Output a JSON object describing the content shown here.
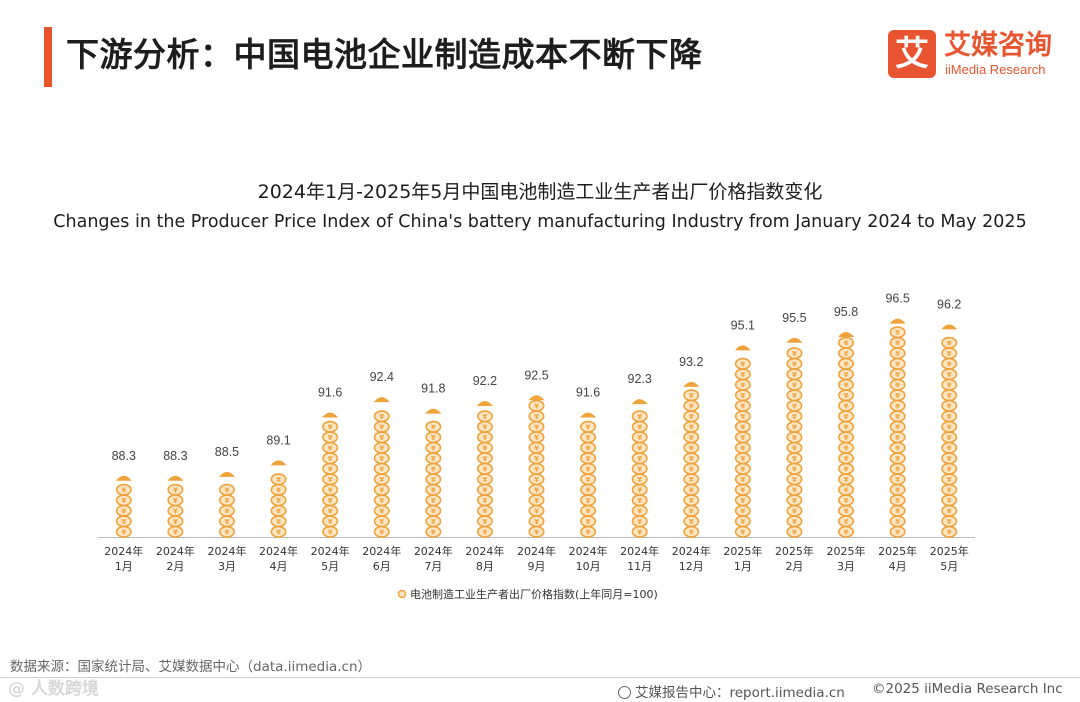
{
  "header": {
    "title": "下游分析：中国电池企业制造成本不断下降",
    "accent_color": "#e8542f"
  },
  "logo": {
    "mark": "艾",
    "cn": "艾媒咨询",
    "en": "iiMedia Research"
  },
  "chart_data": {
    "type": "bar",
    "title": "2024年1月-2025年5月中国电池制造工业生产者出厂价格指数变化",
    "subtitle": "Changes in the Producer Price Index of China's battery manufacturing Industry from January 2024 to May 2025",
    "categories": [
      [
        "2024年",
        "1月"
      ],
      [
        "2024年",
        "2月"
      ],
      [
        "2024年",
        "3月"
      ],
      [
        "2024年",
        "4月"
      ],
      [
        "2024年",
        "5月"
      ],
      [
        "2024年",
        "6月"
      ],
      [
        "2024年",
        "7月"
      ],
      [
        "2024年",
        "8月"
      ],
      [
        "2024年",
        "9月"
      ],
      [
        "2024年",
        "10月"
      ],
      [
        "2024年",
        "11月"
      ],
      [
        "2024年",
        "12月"
      ],
      [
        "2025年",
        "1月"
      ],
      [
        "2025年",
        "2月"
      ],
      [
        "2025年",
        "3月"
      ],
      [
        "2025年",
        "4月"
      ],
      [
        "2025年",
        "5月"
      ]
    ],
    "series": [
      {
        "name": "电池制造工业生产者出厂价格指数(上年同月=100)",
        "values": [
          88.3,
          88.3,
          88.5,
          89.1,
          91.6,
          92.4,
          91.8,
          92.2,
          92.5,
          91.6,
          92.3,
          93.2,
          95.1,
          95.5,
          95.8,
          96.5,
          96.2
        ],
        "color": "#f0a33a"
      }
    ],
    "ylim": [
      85,
      97
    ],
    "xlabel": "",
    "ylabel": "",
    "legend_position": "bottom-center",
    "grid": false,
    "coin_symbol": "¥"
  },
  "footer": {
    "source": "数据来源：国家统计局、艾媒数据中心（data.iimedia.cn）",
    "watermark": "@ 人数跨境",
    "report_center": "艾媒报告中心：report.iimedia.cn",
    "copyright": "©2025  iiMedia Research  Inc"
  }
}
